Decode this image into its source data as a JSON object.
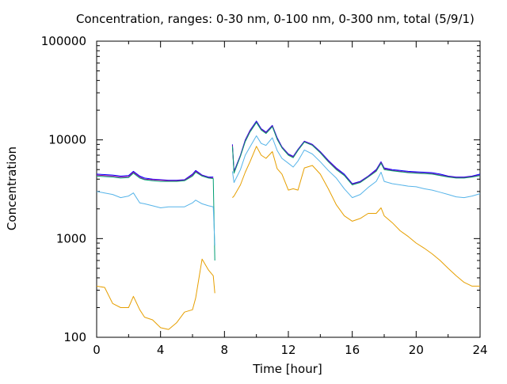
{
  "chart_data": {
    "type": "line",
    "title": "Concentration, ranges: 0-30 nm, 0-100 nm, 0-300 nm, total (5/9/1)",
    "xlabel": "Time [hour]",
    "ylabel": "Concentration",
    "xlim": [
      0,
      24
    ],
    "ylim": [
      100,
      100000
    ],
    "yscale": "log",
    "grid": false,
    "x_ticks": [
      0,
      4,
      8,
      12,
      16,
      20,
      24
    ],
    "x_tick_labels": [
      "0",
      "4",
      "8",
      "12",
      "16",
      "20",
      "24"
    ],
    "y_ticks": [
      100,
      1000,
      10000,
      100000
    ],
    "y_tick_labels": [
      "100",
      "1000",
      "10000",
      "100000"
    ],
    "x": [
      0,
      0.5,
      1,
      1.5,
      2,
      2.3,
      2.7,
      3,
      3.5,
      4,
      4.5,
      5,
      5.5,
      6,
      6.2,
      6.6,
      7,
      7.3,
      7.4,
      7.5,
      8.5,
      8.6,
      9,
      9.3,
      9.6,
      10,
      10.3,
      10.6,
      11,
      11.3,
      11.6,
      12,
      12.3,
      12.6,
      13,
      13.5,
      14,
      14.5,
      15,
      15.5,
      16,
      16.5,
      17,
      17.5,
      17.8,
      18,
      18.5,
      19,
      19.5,
      20,
      20.5,
      21,
      21.5,
      22,
      22.5,
      23,
      23.5,
      24
    ],
    "series": [
      {
        "color": "#0000ff",
        "values": [
          4500,
          4450,
          4400,
          4300,
          4350,
          4800,
          4300,
          4100,
          4000,
          3950,
          3900,
          3900,
          3950,
          4500,
          4900,
          4400,
          4200,
          4200,
          null,
          null,
          9000,
          4800,
          7000,
          10000,
          12500,
          15500,
          13000,
          12000,
          14000,
          10500,
          8500,
          7200,
          6800,
          8000,
          9700,
          9000,
          7600,
          6200,
          5200,
          4500,
          3600,
          3800,
          4300,
          5000,
          6000,
          5200,
          5000,
          4900,
          4800,
          4750,
          4700,
          4650,
          4500,
          4300,
          4200,
          4200,
          4300,
          4500
        ]
      },
      {
        "color": "#a000a0",
        "values": [
          4400,
          4350,
          4300,
          4200,
          4250,
          4700,
          4200,
          4000,
          3950,
          3900,
          3850,
          3850,
          3900,
          4400,
          4800,
          4350,
          4150,
          4100,
          null,
          null,
          8800,
          4700,
          6900,
          9800,
          12300,
          15200,
          12800,
          11800,
          13800,
          10300,
          8400,
          7100,
          6700,
          7900,
          9600,
          8900,
          7500,
          6100,
          5100,
          4400,
          3550,
          3750,
          4250,
          4900,
          5900,
          5100,
          4900,
          4800,
          4700,
          4650,
          4600,
          4550,
          4400,
          4250,
          4150,
          4150,
          4250,
          4400
        ]
      },
      {
        "color": "#009e73",
        "values": [
          4300,
          4250,
          4200,
          4100,
          4150,
          4600,
          4100,
          3950,
          3850,
          3800,
          3800,
          3800,
          3850,
          4300,
          4700,
          4300,
          4100,
          4050,
          600,
          null,
          8600,
          4600,
          6800,
          9600,
          12000,
          15000,
          12600,
          11600,
          13600,
          10100,
          8300,
          7000,
          6600,
          7800,
          9500,
          8800,
          7400,
          6000,
          5000,
          4350,
          3500,
          3700,
          4200,
          4800,
          5800,
          5000,
          4850,
          4750,
          4650,
          4600,
          4550,
          4500,
          4350,
          4200,
          4100,
          4100,
          4200,
          4350
        ]
      },
      {
        "color": "#56b4e9",
        "values": [
          3000,
          2900,
          2800,
          2600,
          2700,
          2900,
          2300,
          2250,
          2150,
          2050,
          2100,
          2100,
          2100,
          2300,
          2450,
          2250,
          2150,
          2100,
          850,
          null,
          4800,
          3700,
          5000,
          7000,
          8500,
          11000,
          9200,
          8800,
          10500,
          7800,
          6500,
          5800,
          5300,
          6100,
          7900,
          7200,
          6000,
          4900,
          4100,
          3200,
          2600,
          2800,
          3300,
          3800,
          4700,
          3800,
          3600,
          3500,
          3400,
          3350,
          3200,
          3100,
          2950,
          2800,
          2650,
          2600,
          2700,
          2850
        ]
      },
      {
        "color": "#e69f00",
        "values": [
          330,
          320,
          220,
          200,
          200,
          260,
          190,
          160,
          150,
          125,
          120,
          140,
          180,
          190,
          250,
          620,
          480,
          420,
          280,
          null,
          2600,
          2700,
          3500,
          4700,
          6000,
          8600,
          7000,
          6500,
          7600,
          5100,
          4500,
          3100,
          3200,
          3100,
          5200,
          5500,
          4500,
          3200,
          2200,
          1700,
          1500,
          1600,
          1800,
          1800,
          2050,
          1700,
          1450,
          1200,
          1050,
          900,
          800,
          700,
          600,
          500,
          420,
          360,
          330,
          330
        ]
      }
    ]
  }
}
